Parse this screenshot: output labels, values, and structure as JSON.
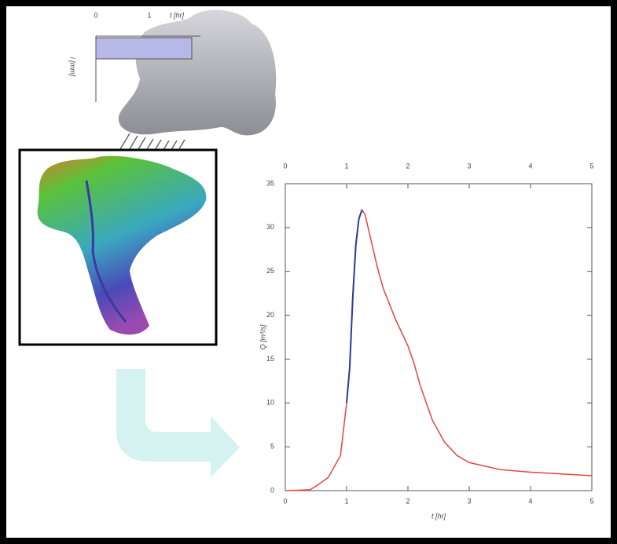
{
  "rainfall": {
    "x_label": "t [hr]",
    "y_label": "i [mm]",
    "xticks": [
      "0",
      "1"
    ]
  },
  "chart_data": {
    "type": "line",
    "x_label": "t [hr]",
    "y_label": "Q [m³/s]",
    "x": [
      0,
      0.4,
      0.5,
      0.7,
      0.9,
      1.0,
      1.05,
      1.1,
      1.15,
      1.2,
      1.25,
      1.3,
      1.4,
      1.5,
      1.6,
      1.8,
      2.0,
      2.1,
      2.2,
      2.4,
      2.6,
      2.8,
      3.0,
      3.5,
      4.0,
      4.5,
      5.0
    ],
    "series": [
      {
        "color": "#e8443a",
        "values": [
          0,
          0.1,
          0.5,
          1.5,
          4,
          10,
          14,
          22,
          28,
          31,
          32,
          31.5,
          28.5,
          25.5,
          23,
          19.5,
          16.5,
          14.5,
          12,
          8,
          5.5,
          4,
          3.2,
          2.4,
          2.1,
          1.9,
          1.7
        ]
      },
      {
        "color": "#2a3b9c",
        "values": [
          null,
          null,
          null,
          null,
          null,
          10,
          14,
          22,
          28,
          31,
          32,
          null,
          null,
          null,
          null,
          null,
          null,
          null,
          null,
          null,
          null,
          null,
          null,
          null,
          null,
          null,
          null
        ]
      }
    ],
    "xlim": [
      0,
      5
    ],
    "ylim": [
      0,
      35
    ],
    "xticks": [
      0,
      1,
      2,
      3,
      4,
      5
    ],
    "yticks": [
      0,
      5,
      10,
      15,
      20,
      25,
      30,
      35
    ]
  }
}
